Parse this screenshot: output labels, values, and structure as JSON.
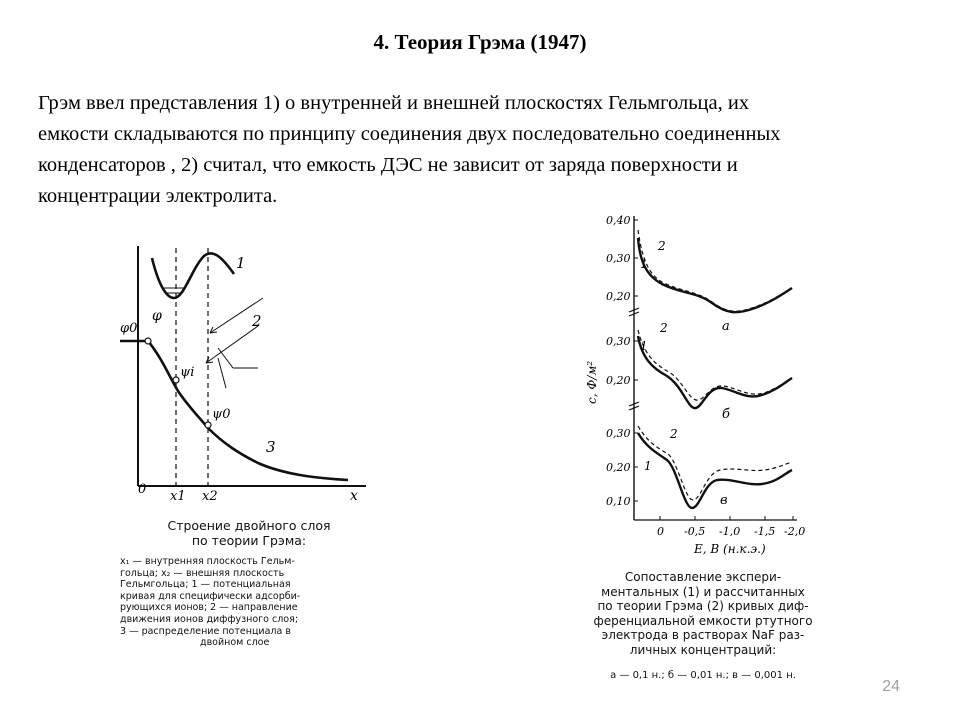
{
  "slide": {
    "title": "4. Теория Грэма (1947)",
    "body_lines": [
      "Грэм ввел представления 1) о внутренней и внешней плоскостях Гельмгольца, их",
      "емкости складываются по принципу соединения двух последовательно соединенных",
      "конденсаторов , 2) считал, что емкость ДЭС не зависит от заряда поверхности и",
      "концентрации электролита."
    ],
    "page_number": "24"
  },
  "left_figure": {
    "labels": {
      "phi0": "φ0",
      "phi": "φ",
      "psi_i": "ψi",
      "psi0": "ψ0",
      "origin": "0",
      "x1": "x1",
      "x2": "x2",
      "x": "x",
      "curve1": "1",
      "curve2": "2",
      "curve3": "3"
    },
    "caption_title": [
      "Строение двойного слоя",
      "по теории Грэма:"
    ],
    "caption_text": [
      "x₁ — внутренняя плоскость Гельм-",
      "гольца; x₂ — внешняя плоскость",
      "Гельмгольца; 1 — потенциальная",
      "кривая для специфически адсорби-",
      "рующихся ионов; 2 — направление",
      "движения ионов диффузного слоя;",
      "3 — распределение потенциала в",
      "двойном слое"
    ]
  },
  "right_figure": {
    "y_axis_label": "c, Ф/м²",
    "x_axis_label": "E, В (н.к.э.)",
    "panels": [
      {
        "id": "a",
        "tag": "а",
        "ticks": [
          "0,40",
          "0,30",
          "0,20"
        ]
      },
      {
        "id": "b",
        "tag": "б",
        "ticks": [
          "0,30",
          "0,20"
        ]
      },
      {
        "id": "c",
        "tag": "в",
        "ticks": [
          "0,30",
          "0,20",
          "0,10"
        ]
      }
    ],
    "curve_labels": {
      "experimental": "1",
      "calculated": "2"
    },
    "x_ticks": [
      "0",
      "-0,5",
      "-1,0",
      "-1,5",
      "-2,0"
    ],
    "caption_lines": [
      "Сопоставление экспери-",
      "ментальных (1) и рассчитанных",
      "по теории Грэма (2) кривых диф-",
      "ференциальной емкости ртутного",
      "электрода в растворах NaF раз-",
      "личных концентраций:"
    ],
    "caption_note": "а — 0,1 н.; б — 0,01 н.; в — 0,001 н."
  }
}
